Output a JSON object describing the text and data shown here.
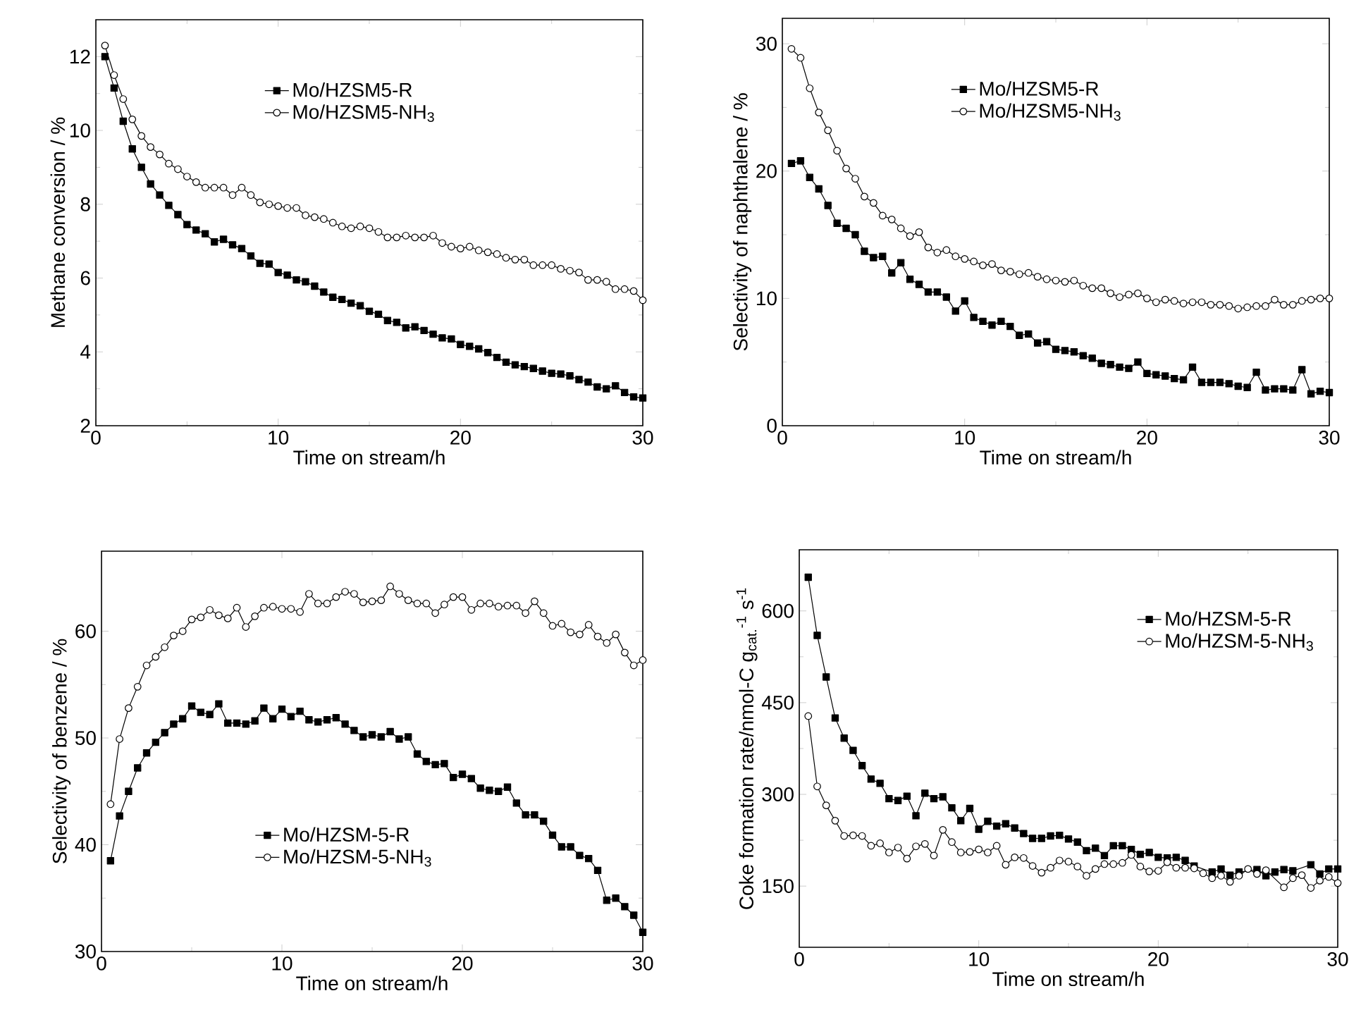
{
  "chart_data": [
    {
      "type": "line",
      "xlabel": "Time on stream/h",
      "ylabel": "Methane conversion / %",
      "xlim": [
        0,
        30
      ],
      "ylim": [
        2,
        13
      ],
      "xticks": [
        0,
        10,
        20,
        30
      ],
      "yticks": [
        2,
        4,
        6,
        8,
        10,
        12
      ],
      "legend": "top",
      "x": [
        0.5,
        1,
        1.5,
        2,
        2.5,
        3,
        3.5,
        4,
        4.5,
        5,
        5.5,
        6,
        6.5,
        7,
        7.5,
        8,
        8.5,
        9,
        9.5,
        10,
        10.5,
        11,
        11.5,
        12,
        12.5,
        13,
        13.5,
        14,
        14.5,
        15,
        15.5,
        16,
        16.5,
        17,
        17.5,
        18,
        18.5,
        19,
        19.5,
        20,
        20.5,
        21,
        21.5,
        22,
        22.5,
        23,
        23.5,
        24,
        24.5,
        25,
        25.5,
        26,
        26.5,
        27,
        27.5,
        28,
        28.5,
        29,
        29.5,
        30
      ],
      "series": [
        {
          "name": "Mo/HZSM5-R",
          "color": "#000000",
          "marker": "square",
          "values": [
            12.0,
            11.15,
            10.25,
            9.5,
            9.0,
            8.55,
            8.25,
            7.97,
            7.72,
            7.45,
            7.3,
            7.2,
            6.98,
            7.05,
            6.9,
            6.8,
            6.6,
            6.4,
            6.38,
            6.15,
            6.08,
            5.95,
            5.9,
            5.78,
            5.62,
            5.48,
            5.42,
            5.32,
            5.25,
            5.1,
            5.02,
            4.85,
            4.8,
            4.65,
            4.68,
            4.58,
            4.48,
            4.38,
            4.35,
            4.2,
            4.15,
            4.08,
            3.98,
            3.85,
            3.72,
            3.65,
            3.6,
            3.55,
            3.48,
            3.42,
            3.4,
            3.35,
            3.25,
            3.18,
            3.05,
            3.0,
            3.08,
            2.9,
            2.78,
            2.75
          ]
        },
        {
          "name": "Mo/HZSM5-NH$_{3}$",
          "color": "#000000",
          "marker": "circle",
          "values": [
            12.3,
            11.5,
            10.85,
            10.3,
            9.85,
            9.55,
            9.35,
            9.1,
            8.95,
            8.75,
            8.6,
            8.45,
            8.45,
            8.45,
            8.25,
            8.45,
            8.25,
            8.05,
            8.0,
            7.95,
            7.9,
            7.9,
            7.7,
            7.65,
            7.6,
            7.5,
            7.4,
            7.35,
            7.4,
            7.35,
            7.25,
            7.1,
            7.1,
            7.15,
            7.1,
            7.1,
            7.15,
            6.95,
            6.85,
            6.8,
            6.85,
            6.75,
            6.7,
            6.65,
            6.55,
            6.5,
            6.5,
            6.35,
            6.35,
            6.35,
            6.25,
            6.2,
            6.15,
            5.95,
            5.95,
            5.9,
            5.7,
            5.7,
            5.65,
            5.4
          ]
        }
      ]
    },
    {
      "type": "line",
      "xlabel": "Time on stream/h",
      "ylabel": "Selectivity of naphthalene / %",
      "xlim": [
        0,
        30
      ],
      "ylim": [
        0,
        32
      ],
      "xticks": [
        0,
        10,
        20,
        30
      ],
      "yticks": [
        0,
        10,
        20,
        30
      ],
      "legend": "top",
      "x": [
        0.5,
        1,
        1.5,
        2,
        2.5,
        3,
        3.5,
        4,
        4.5,
        5,
        5.5,
        6,
        6.5,
        7,
        7.5,
        8,
        8.5,
        9,
        9.5,
        10,
        10.5,
        11,
        11.5,
        12,
        12.5,
        13,
        13.5,
        14,
        14.5,
        15,
        15.5,
        16,
        16.5,
        17,
        17.5,
        18,
        18.5,
        19,
        19.5,
        20,
        20.5,
        21,
        21.5,
        22,
        22.5,
        23,
        23.5,
        24,
        24.5,
        25,
        25.5,
        26,
        26.5,
        27,
        27.5,
        28,
        28.5,
        29,
        29.5,
        30
      ],
      "series": [
        {
          "name": "Mo/HZSM5-R",
          "color": "#000000",
          "marker": "square",
          "values": [
            20.6,
            20.8,
            19.5,
            18.6,
            17.3,
            15.9,
            15.5,
            15.0,
            13.7,
            13.2,
            13.3,
            12.0,
            12.8,
            11.5,
            11.1,
            10.5,
            10.5,
            10.1,
            9.0,
            9.8,
            8.5,
            8.2,
            7.9,
            8.2,
            7.8,
            7.1,
            7.2,
            6.5,
            6.6,
            6.0,
            5.9,
            5.8,
            5.5,
            5.3,
            4.9,
            4.8,
            4.6,
            4.5,
            5.0,
            4.1,
            4.0,
            3.9,
            3.7,
            3.6,
            4.6,
            3.4,
            3.4,
            3.4,
            3.3,
            3.1,
            3.0,
            4.2,
            2.8,
            2.9,
            2.9,
            2.8,
            4.4,
            2.5,
            2.7,
            2.6
          ]
        },
        {
          "name": "Mo/HZSM5-NH$_{3}$",
          "color": "#000000",
          "marker": "circle",
          "values": [
            29.6,
            28.9,
            26.5,
            24.6,
            23.2,
            21.6,
            20.2,
            19.4,
            18.0,
            17.5,
            16.5,
            16.2,
            15.5,
            14.9,
            15.2,
            14.0,
            13.6,
            13.8,
            13.3,
            13.1,
            12.9,
            12.6,
            12.7,
            12.2,
            12.1,
            11.9,
            12.0,
            11.7,
            11.5,
            11.4,
            11.3,
            11.4,
            11.0,
            10.8,
            10.8,
            10.4,
            10.1,
            10.3,
            10.4,
            10.0,
            9.7,
            9.9,
            9.8,
            9.6,
            9.7,
            9.7,
            9.5,
            9.5,
            9.4,
            9.2,
            9.3,
            9.4,
            9.4,
            9.9,
            9.5,
            9.5,
            9.8,
            9.9,
            10.0,
            10.0
          ]
        }
      ]
    },
    {
      "type": "line",
      "xlabel": "Time on stream/h",
      "ylabel": "Selectivity of benzene / %",
      "xlim": [
        0,
        30
      ],
      "ylim": [
        30,
        67.5
      ],
      "xticks": [
        0,
        10,
        20,
        30
      ],
      "yticks": [
        30,
        40,
        50,
        60
      ],
      "legend": "bottom",
      "x": [
        0.5,
        1,
        1.5,
        2,
        2.5,
        3,
        3.5,
        4,
        4.5,
        5,
        5.5,
        6,
        6.5,
        7,
        7.5,
        8,
        8.5,
        9,
        9.5,
        10,
        10.5,
        11,
        11.5,
        12,
        12.5,
        13,
        13.5,
        14,
        14.5,
        15,
        15.5,
        16,
        16.5,
        17,
        17.5,
        18,
        18.5,
        19,
        19.5,
        20,
        20.5,
        21,
        21.5,
        22,
        22.5,
        23,
        23.5,
        24,
        24.5,
        25,
        25.5,
        26,
        26.5,
        27,
        27.5,
        28,
        28.5,
        29,
        29.5,
        30
      ],
      "series": [
        {
          "name": "Mo/HZSM-5-R",
          "color": "#000000",
          "marker": "square",
          "values": [
            38.5,
            42.7,
            45.0,
            47.2,
            48.6,
            49.6,
            50.5,
            51.3,
            51.8,
            53.0,
            52.4,
            52.2,
            53.2,
            51.4,
            51.4,
            51.3,
            51.6,
            52.8,
            51.8,
            52.7,
            52.0,
            52.5,
            51.7,
            51.5,
            51.7,
            51.9,
            51.3,
            50.7,
            50.1,
            50.3,
            50.1,
            50.6,
            49.9,
            50.1,
            48.5,
            47.8,
            47.5,
            47.6,
            46.3,
            46.6,
            46.2,
            45.3,
            45.1,
            45.0,
            45.4,
            43.9,
            42.8,
            42.8,
            42.2,
            40.9,
            39.8,
            39.8,
            39.0,
            38.7,
            37.6,
            34.8,
            35.0,
            34.2,
            33.4,
            31.8
          ]
        },
        {
          "name": "Mo/HZSM-5-NH$_{3}$",
          "color": "#000000",
          "marker": "circle",
          "values": [
            43.8,
            49.9,
            52.8,
            54.8,
            56.8,
            57.6,
            58.5,
            59.6,
            60.0,
            61.1,
            61.3,
            62.0,
            61.5,
            61.2,
            62.2,
            60.4,
            61.4,
            62.2,
            62.3,
            62.1,
            62.1,
            61.8,
            63.5,
            62.6,
            62.6,
            63.2,
            63.7,
            63.5,
            62.7,
            62.8,
            62.9,
            64.2,
            63.5,
            62.9,
            62.6,
            62.6,
            61.7,
            62.5,
            63.2,
            63.2,
            62.0,
            62.6,
            62.6,
            62.3,
            62.4,
            62.4,
            61.7,
            62.8,
            61.7,
            60.5,
            60.7,
            59.9,
            59.7,
            60.6,
            59.5,
            58.9,
            59.7,
            58.0,
            56.8,
            57.3
          ]
        }
      ]
    },
    {
      "type": "line",
      "xlabel": "Time on stream/h",
      "ylabel": "Coke formation rate/nmol-C g$_{cat.}$$^{-1}$ s$^{-1}$",
      "xlim": [
        0,
        30
      ],
      "ylim": [
        50,
        700
      ],
      "xticks": [
        0,
        10,
        20,
        30
      ],
      "yticks": [
        150,
        300,
        450,
        600
      ],
      "legend": "top right",
      "x": [
        0.5,
        1,
        1.5,
        2,
        2.5,
        3,
        3.5,
        4,
        4.5,
        5,
        5.5,
        6,
        6.5,
        7,
        7.5,
        8,
        8.5,
        9,
        9.5,
        10,
        10.5,
        11,
        11.5,
        12,
        12.5,
        13,
        13.5,
        14,
        14.5,
        15,
        15.5,
        16,
        16.5,
        17,
        17.5,
        18,
        18.5,
        19,
        19.5,
        20,
        20.5,
        21,
        21.5,
        22,
        22.5,
        23,
        23.5,
        24,
        24.5,
        25,
        25.5,
        26,
        26.5,
        27,
        27.5,
        28,
        28.5,
        29,
        29.5,
        30
      ],
      "series": [
        {
          "name": "Mo/HZSM-5-R",
          "color": "#000000",
          "marker": "square",
          "values": [
            655,
            560,
            492,
            425,
            392,
            372,
            347,
            325,
            318,
            293,
            290,
            297,
            265,
            302,
            293,
            296,
            278,
            257,
            277,
            243,
            256,
            248,
            252,
            245,
            236,
            228,
            228,
            232,
            233,
            227,
            222,
            208,
            212,
            200,
            216,
            216,
            210,
            202,
            205,
            197,
            196,
            197,
            192,
            183,
            null,
            173,
            178,
            168,
            173,
            null,
            177,
            167,
            173,
            177,
            175,
            null,
            185,
            170,
            178,
            178
          ]
        },
        {
          "name": "Mo/HZSM-5-NH$_{3}$",
          "color": "#000000",
          "marker": "circle",
          "values": [
            428,
            313,
            282,
            257,
            232,
            233,
            232,
            216,
            220,
            205,
            213,
            195,
            215,
            219,
            200,
            242,
            222,
            205,
            206,
            210,
            205,
            216,
            185,
            197,
            196,
            183,
            172,
            180,
            192,
            190,
            182,
            167,
            178,
            186,
            186,
            188,
            201,
            182,
            174,
            175,
            189,
            180,
            180,
            179,
            171,
            163,
            167,
            157,
            167,
            178,
            170,
            176,
            null,
            148,
            163,
            168,
            147,
            159,
            165,
            155
          ]
        }
      ]
    }
  ]
}
